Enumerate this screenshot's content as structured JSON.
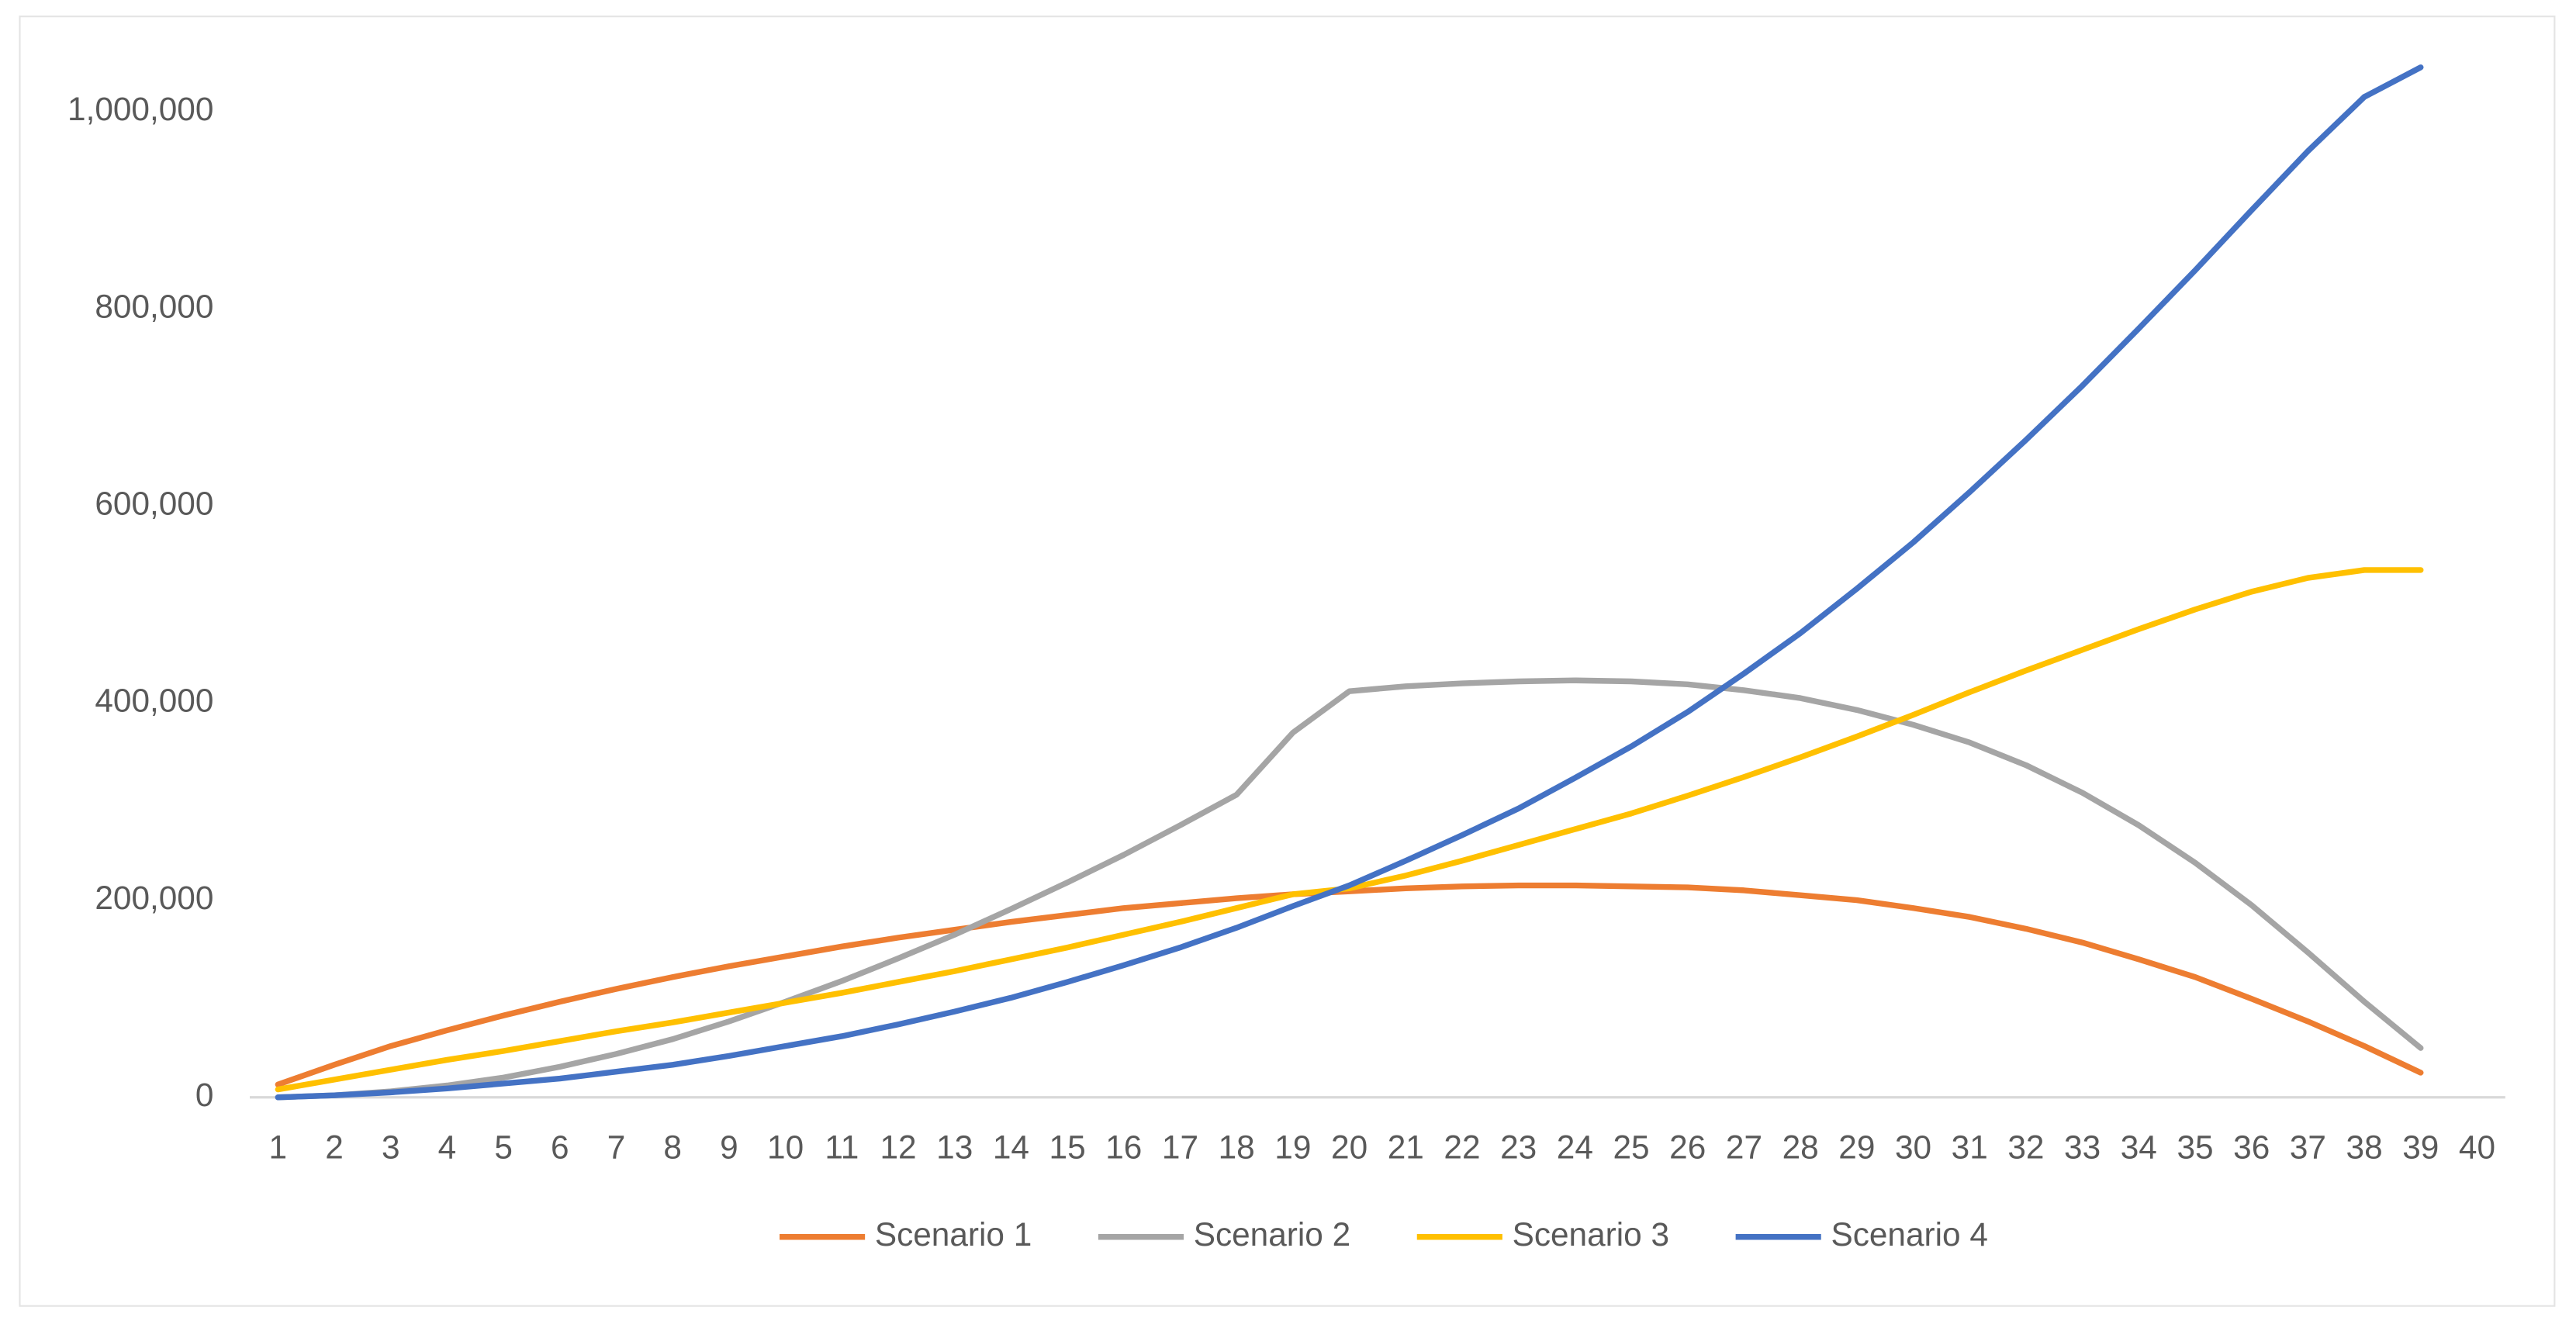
{
  "chart_data": {
    "type": "line",
    "categories": [
      "1",
      "2",
      "3",
      "4",
      "5",
      "6",
      "7",
      "8",
      "9",
      "10",
      "11",
      "12",
      "13",
      "14",
      "15",
      "16",
      "17",
      "18",
      "19",
      "20",
      "21",
      "22",
      "23",
      "24",
      "25",
      "26",
      "27",
      "28",
      "29",
      "30",
      "31",
      "32",
      "33",
      "34",
      "35",
      "36",
      "37",
      "38",
      "39",
      "40"
    ],
    "series": [
      {
        "name": "Scenario 1",
        "color": "#ED7D31",
        "values": [
          13000,
          33000,
          52000,
          68000,
          83000,
          97000,
          110000,
          122000,
          133000,
          143000,
          153000,
          162000,
          170000,
          178000,
          185000,
          192000,
          197000,
          202000,
          206000,
          209000,
          212000,
          214000,
          215000,
          215000,
          214000,
          213000,
          210000,
          205000,
          200000,
          192000,
          183000,
          171000,
          157000,
          140000,
          122000,
          100000,
          77000,
          52000,
          25000,
          null
        ]
      },
      {
        "name": "Scenario 2",
        "color": "#A5A5A5",
        "values": [
          0,
          2000,
          6000,
          12000,
          20000,
          31000,
          44000,
          59000,
          77000,
          97000,
          118000,
          141000,
          165000,
          191000,
          218000,
          246000,
          276000,
          307000,
          370000,
          412000,
          417000,
          420000,
          422000,
          423000,
          422000,
          419000,
          413000,
          405000,
          393000,
          378000,
          360000,
          337000,
          309000,
          276000,
          238000,
          195000,
          147000,
          97000,
          50000,
          null
        ]
      },
      {
        "name": "Scenario 3",
        "color": "#FFC000",
        "values": [
          8000,
          18000,
          28000,
          38000,
          47000,
          57000,
          67000,
          76000,
          86000,
          96000,
          106000,
          117000,
          128000,
          140000,
          152000,
          165000,
          178000,
          192000,
          206000,
          212000,
          225000,
          240000,
          256000,
          272000,
          288000,
          306000,
          325000,
          345000,
          366000,
          388000,
          411000,
          433000,
          454000,
          475000,
          495000,
          513000,
          527000,
          535000,
          535000,
          null
        ]
      },
      {
        "name": "Scenario 4",
        "color": "#4472C4",
        "values": [
          0,
          2000,
          5000,
          9000,
          14000,
          19000,
          26000,
          33000,
          42000,
          52000,
          62000,
          74000,
          87000,
          101000,
          117000,
          134000,
          152000,
          172000,
          194000,
          215000,
          240000,
          266000,
          293000,
          324000,
          356000,
          391000,
          430000,
          471000,
          516000,
          563000,
          614000,
          667000,
          722000,
          780000,
          839000,
          900000,
          960000,
          1015000,
          1045000,
          null
        ]
      }
    ],
    "ylim": [
      0,
      1100000
    ],
    "yticks": [
      0,
      {
        "value": 200000,
        "label": "200,000"
      },
      {
        "value": 400000,
        "label": "400,000"
      },
      {
        "value": 600000,
        "label": "600,000"
      },
      {
        "value": 800000,
        "label": "800,000"
      },
      {
        "value": 1000000,
        "label": "1,000,000"
      }
    ],
    "grid": false,
    "legend": "bottom"
  }
}
